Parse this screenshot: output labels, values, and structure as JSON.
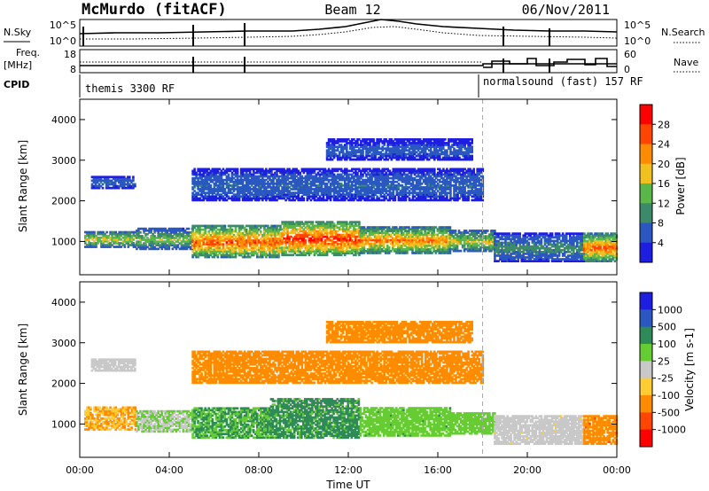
{
  "header": {
    "station": "McMurdo (fitACF)",
    "beam": "Beam 12",
    "date": "06/Nov/2011"
  },
  "noise_panel": {
    "left_label": "N.Sky",
    "right_label": "N.Search",
    "left_tick_top": "10^5",
    "left_tick_bottom": "10^0",
    "right_tick_top": "10^5",
    "right_tick_bottom": "10^0"
  },
  "freq_panel": {
    "left_label_1": "Freq.",
    "left_label_2": "[MHz]",
    "right_label": "Nave",
    "left_tick_top": "18",
    "left_tick_bottom": "8",
    "right_tick_top": "60",
    "right_tick_bottom": "0"
  },
  "cpid_panel": {
    "label": "CPID",
    "mode_1": "themis 3300 RF",
    "mode_2": "normalsound (fast) 157 RF"
  },
  "x_axis": {
    "label": "Time UT",
    "ticks": [
      "00:00",
      "04:00",
      "08:00",
      "12:00",
      "16:00",
      "20:00",
      "00:00"
    ]
  },
  "power_panel": {
    "ylabel": "Slant Range [km]",
    "yticks": [
      "1000",
      "2000",
      "3000",
      "4000"
    ],
    "cbar_label": "Power [dB]",
    "cbar_ticks": [
      "4",
      "8",
      "12",
      "16",
      "20",
      "24",
      "28"
    ],
    "cbar_colors": [
      "#1e1ee0",
      "#2a58c0",
      "#3d8a6a",
      "#5ab84a",
      "#f0c020",
      "#ff8c00",
      "#ff4500",
      "#ff0000"
    ]
  },
  "velocity_panel": {
    "ylabel": "Slant Range [km]",
    "yticks": [
      "1000",
      "2000",
      "3000",
      "4000"
    ],
    "cbar_label": "Velocity [m s-1]",
    "cbar_ticks": [
      "1000",
      "500",
      "100",
      "25",
      "-25",
      "-100",
      "-500",
      "-1000"
    ],
    "cbar_colors": [
      "#1e1ee0",
      "#2a58c0",
      "#2e8b57",
      "#66cc33",
      "#c8c8c8",
      "#ffcc33",
      "#ff8c00",
      "#ff4500",
      "#ff0000"
    ]
  },
  "chart_data": [
    {
      "type": "heatmap",
      "name": "Power",
      "x_range_hours": [
        0,
        24
      ],
      "y_range_km": [
        180,
        4500
      ],
      "value_range_db": [
        0,
        30
      ],
      "mode_change_hour": 18.0,
      "echo_bands": [
        {
          "t0": 0.2,
          "t1": 2.5,
          "r0": 850,
          "r1": 1250,
          "level": 14
        },
        {
          "t0": 2.5,
          "t1": 5.0,
          "r0": 800,
          "r1": 1300,
          "level": 12
        },
        {
          "t0": 5.0,
          "t1": 9.0,
          "r0": 600,
          "r1": 1400,
          "level": 20
        },
        {
          "t0": 9.0,
          "t1": 12.5,
          "r0": 650,
          "r1": 1500,
          "level": 22
        },
        {
          "t0": 12.5,
          "t1": 16.5,
          "r0": 700,
          "r1": 1350,
          "level": 18
        },
        {
          "t0": 16.5,
          "t1": 18.5,
          "r0": 750,
          "r1": 1250,
          "level": 14
        },
        {
          "t0": 18.5,
          "t1": 22.5,
          "r0": 500,
          "r1": 1200,
          "level": 8
        },
        {
          "t0": 22.5,
          "t1": 24.0,
          "r0": 500,
          "r1": 1200,
          "level": 20
        },
        {
          "t0": 0.5,
          "t1": 2.5,
          "r0": 2300,
          "r1": 2600,
          "level": 6
        },
        {
          "t0": 5.0,
          "t1": 18.0,
          "r0": 2000,
          "r1": 2800,
          "level": 6
        },
        {
          "t0": 11.0,
          "t1": 17.5,
          "r0": 3000,
          "r1": 3500,
          "level": 5
        }
      ]
    },
    {
      "type": "heatmap",
      "name": "Velocity",
      "x_range_hours": [
        0,
        24
      ],
      "y_range_km": [
        180,
        4500
      ],
      "value_range_ms": [
        -1000,
        1000
      ],
      "echo_bands": [
        {
          "t0": 0.2,
          "t1": 2.5,
          "r0": 850,
          "r1": 1400,
          "v": -100
        },
        {
          "t0": 2.5,
          "t1": 5.0,
          "r0": 800,
          "r1": 1300,
          "v": 25
        },
        {
          "t0": 5.0,
          "t1": 8.5,
          "r0": 650,
          "r1": 1400,
          "v": 100
        },
        {
          "t0": 8.5,
          "t1": 12.5,
          "r0": 650,
          "r1": 1600,
          "v": 120
        },
        {
          "t0": 12.5,
          "t1": 16.5,
          "r0": 700,
          "r1": 1400,
          "v": 80
        },
        {
          "t0": 16.5,
          "t1": 18.5,
          "r0": 750,
          "r1": 1250,
          "v": 60
        },
        {
          "t0": 18.5,
          "t1": 22.5,
          "r0": 500,
          "r1": 1200,
          "v": -20
        },
        {
          "t0": 22.5,
          "t1": 24.0,
          "r0": 500,
          "r1": 1200,
          "v": -400
        },
        {
          "t0": 0.5,
          "t1": 2.5,
          "r0": 2300,
          "r1": 2600,
          "v": 0
        },
        {
          "t0": 5.0,
          "t1": 18.0,
          "r0": 2000,
          "r1": 2800,
          "v": -150
        },
        {
          "t0": 11.0,
          "t1": 17.5,
          "r0": 3000,
          "r1": 3500,
          "v": -200
        }
      ]
    }
  ]
}
